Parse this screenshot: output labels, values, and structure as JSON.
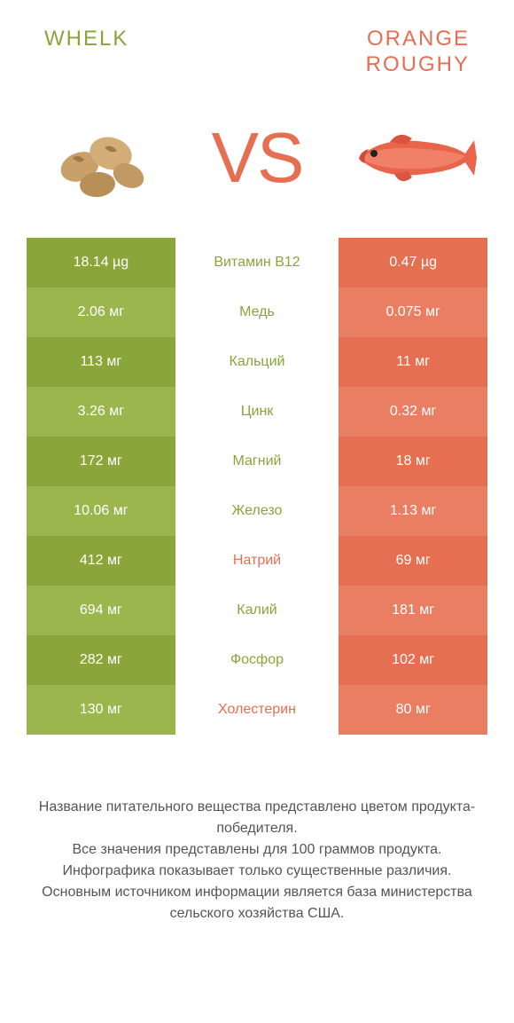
{
  "products": {
    "left": {
      "name": "WHELK",
      "color": "#8aa53a",
      "color_alt": "#9bb64c"
    },
    "right": {
      "name": "ORANGE ROUGHY",
      "color": "#e76f51",
      "color_alt": "#ea7e63"
    }
  },
  "vs_label": "VS",
  "colors": {
    "left_base": "#8aa53a",
    "left_alt": "#9bb64c",
    "right_base": "#e76f51",
    "right_alt": "#ea7e63",
    "label_text_left": "#8aa53a",
    "label_text_right": "#e76f51",
    "title_left": "#8aa53a",
    "title_right": "#e76f51",
    "vs_color": "#e76f51",
    "footer_text": "#555555",
    "background": "#ffffff"
  },
  "rows": [
    {
      "label": "Витамин B12",
      "left": "18.14 µg",
      "right": "0.47 µg",
      "winner": "left"
    },
    {
      "label": "Медь",
      "left": "2.06 мг",
      "right": "0.075 мг",
      "winner": "left"
    },
    {
      "label": "Кальций",
      "left": "113 мг",
      "right": "11 мг",
      "winner": "left"
    },
    {
      "label": "Цинк",
      "left": "3.26 мг",
      "right": "0.32 мг",
      "winner": "left"
    },
    {
      "label": "Магний",
      "left": "172 мг",
      "right": "18 мг",
      "winner": "left"
    },
    {
      "label": "Железо",
      "left": "10.06 мг",
      "right": "1.13 мг",
      "winner": "left"
    },
    {
      "label": "Натрий",
      "left": "412 мг",
      "right": "69 мг",
      "winner": "right"
    },
    {
      "label": "Калий",
      "left": "694 мг",
      "right": "181 мг",
      "winner": "left"
    },
    {
      "label": "Фосфор",
      "left": "282 мг",
      "right": "102 мг",
      "winner": "left"
    },
    {
      "label": "Холестерин",
      "left": "130 мг",
      "right": "80 мг",
      "winner": "right"
    }
  ],
  "footer_lines": [
    "Название питательного вещества представлено цветом продукта-победителя.",
    "Все значения представлены для 100 граммов продукта.",
    "Инфографика показывает только существенные различия.",
    "Основным источником информации является база министерства сельского хозяйства США."
  ]
}
